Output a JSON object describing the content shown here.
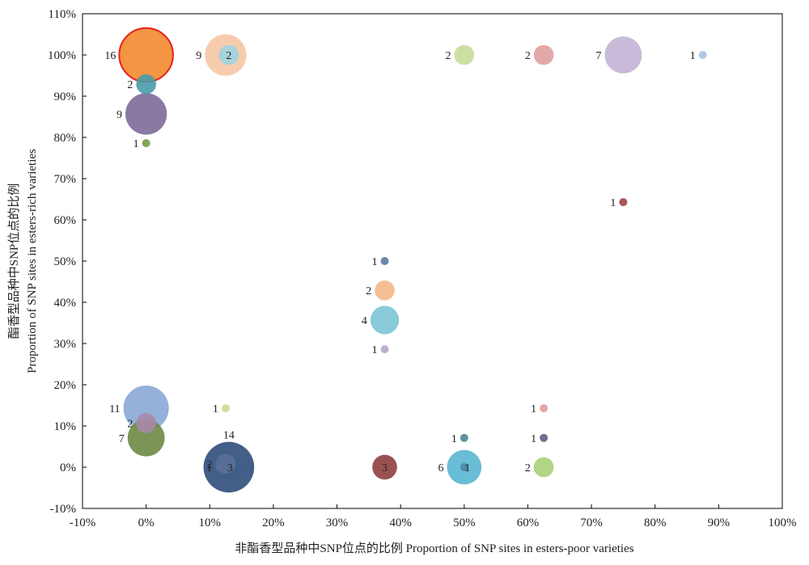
{
  "chart_data": {
    "type": "scatter",
    "xlabel": "非酯香型品种中SNP位点的比例 Proportion of SNP sites in esters-poor varieties",
    "ylabel_line1": "酯香型品种中SNP位点的比例",
    "ylabel_line2": "Proportion of SNP sites in esters-rich varieties",
    "xlim": [
      -10,
      100
    ],
    "ylim": [
      -10,
      110
    ],
    "xticks": [
      -10,
      0,
      10,
      20,
      30,
      40,
      50,
      60,
      70,
      80,
      90,
      100
    ],
    "yticks": [
      -10,
      0,
      10,
      20,
      30,
      40,
      50,
      60,
      70,
      80,
      90,
      100,
      110
    ],
    "xtick_labels": [
      "-10%",
      "0%",
      "10%",
      "20%",
      "30%",
      "40%",
      "50%",
      "60%",
      "70%",
      "80%",
      "90%",
      "100%"
    ],
    "ytick_labels": [
      "-10%",
      "0%",
      "10%",
      "20%",
      "30%",
      "40%",
      "50%",
      "60%",
      "70%",
      "80%",
      "90%",
      "100%",
      "110%"
    ],
    "grid": false,
    "points": [
      {
        "x": 0,
        "y": 100,
        "count": 16,
        "label": "16",
        "color": "#f28a2e",
        "stroke": "#e8211c"
      },
      {
        "x": 12.5,
        "y": 100,
        "count": 9,
        "label": "9",
        "color": "#f6c7a4"
      },
      {
        "x": 13,
        "y": 100,
        "count": 2,
        "label": "2",
        "color": "#9fd4e0"
      },
      {
        "x": 50,
        "y": 100,
        "count": 2,
        "label": "2",
        "color": "#c7dd9b"
      },
      {
        "x": 62.5,
        "y": 100,
        "count": 2,
        "label": "2",
        "color": "#e0a0a0"
      },
      {
        "x": 75,
        "y": 100,
        "count": 7,
        "label": "7",
        "color": "#c2b2d4"
      },
      {
        "x": 87.5,
        "y": 100,
        "count": 1,
        "label": "1",
        "color": "#a9c3e2"
      },
      {
        "x": 0,
        "y": 92.9,
        "count": 2,
        "label": "2",
        "color": "#4a9aa9"
      },
      {
        "x": 0,
        "y": 85.7,
        "count": 9,
        "label": "9",
        "color": "#7d6a99"
      },
      {
        "x": 0,
        "y": 78.6,
        "count": 1,
        "label": "1",
        "color": "#7a9a4a"
      },
      {
        "x": 75,
        "y": 64.3,
        "count": 1,
        "label": "1",
        "color": "#a04545"
      },
      {
        "x": 37.5,
        "y": 50,
        "count": 1,
        "label": "1",
        "color": "#5a7aa6"
      },
      {
        "x": 37.5,
        "y": 42.9,
        "count": 2,
        "label": "2",
        "color": "#f4b88a"
      },
      {
        "x": 37.5,
        "y": 35.7,
        "count": 4,
        "label": "4",
        "color": "#7cc5d6"
      },
      {
        "x": 37.5,
        "y": 28.6,
        "count": 1,
        "label": "1",
        "color": "#b8a6cc"
      },
      {
        "x": 0,
        "y": 14.3,
        "count": 11,
        "label": "11",
        "color": "#8aa9d6"
      },
      {
        "x": 12.5,
        "y": 14.3,
        "count": 1,
        "label": "1",
        "color": "#c7dd9b"
      },
      {
        "x": 62.5,
        "y": 14.3,
        "count": 1,
        "label": "1",
        "color": "#e39a9a"
      },
      {
        "x": 0,
        "y": 10.7,
        "count": 2,
        "label": "2",
        "color": "#a88aa8"
      },
      {
        "x": 0,
        "y": 7.1,
        "count": 7,
        "label": "7",
        "color": "#6e8a45"
      },
      {
        "x": 50,
        "y": 7.1,
        "count": 1,
        "label": "1",
        "color": "#4a8794"
      },
      {
        "x": 62.5,
        "y": 7.1,
        "count": 1,
        "label": "1",
        "color": "#6a5a85"
      },
      {
        "x": 11.5,
        "y": 0,
        "count": 1,
        "label": "1",
        "color": "#5a6f98"
      },
      {
        "x": 12.5,
        "y": 0.8,
        "count": 2,
        "label": "2",
        "color": "#5a6f98"
      },
      {
        "x": 13,
        "y": 0,
        "count": 14,
        "label": "14",
        "color": "#2f4d7a"
      },
      {
        "x": 13.2,
        "y": 0,
        "count": 3,
        "label": "3",
        "color": "#3f5f8a"
      },
      {
        "x": 37.5,
        "y": 0,
        "count": 3,
        "label": "3",
        "color": "#8e3f3f"
      },
      {
        "x": 50,
        "y": 0,
        "count": 6,
        "label": "6",
        "color": "#5ab6d2"
      },
      {
        "x": 50,
        "y": 0,
        "count": 1,
        "label": "1",
        "color": "#4a8aa0"
      },
      {
        "x": 62.5,
        "y": 0,
        "count": 2,
        "label": "2",
        "color": "#a9cf7a"
      }
    ]
  }
}
